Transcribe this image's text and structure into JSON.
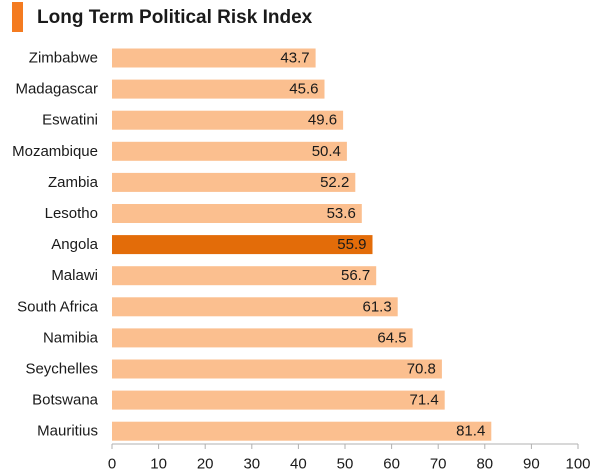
{
  "title": "Long Term Political Risk Index",
  "colors": {
    "title_accent": "#f47b20",
    "bar": "#fbbf8f",
    "bar_highlight": "#e36c09",
    "axis": "#b0b0b0",
    "text": "#1a1a1a"
  },
  "chart_data": {
    "type": "bar",
    "orientation": "horizontal",
    "title": "Long Term Political Risk Index",
    "categories": [
      "Zimbabwe",
      "Madagascar",
      "Eswatini",
      "Mozambique",
      "Zambia",
      "Lesotho",
      "Angola",
      "Malawi",
      "South Africa",
      "Namibia",
      "Seychelles",
      "Botswana",
      "Mauritius"
    ],
    "values": [
      43.7,
      45.6,
      49.6,
      50.4,
      52.2,
      53.6,
      55.9,
      56.7,
      61.3,
      64.5,
      70.8,
      71.4,
      81.4
    ],
    "data_labels": [
      "43.7",
      "45.6",
      "49.6",
      "50.4",
      "52.2",
      "53.6",
      "55.9",
      "56.7",
      "61.3",
      "64.5",
      "70.8",
      "71.4",
      "81.4"
    ],
    "highlighted": "Angola",
    "xlim": [
      0,
      100
    ],
    "x_ticks": [
      "0",
      "10",
      "20",
      "30",
      "40",
      "50",
      "60",
      "70",
      "80",
      "90",
      "100"
    ],
    "grid": false,
    "legend": "none"
  }
}
